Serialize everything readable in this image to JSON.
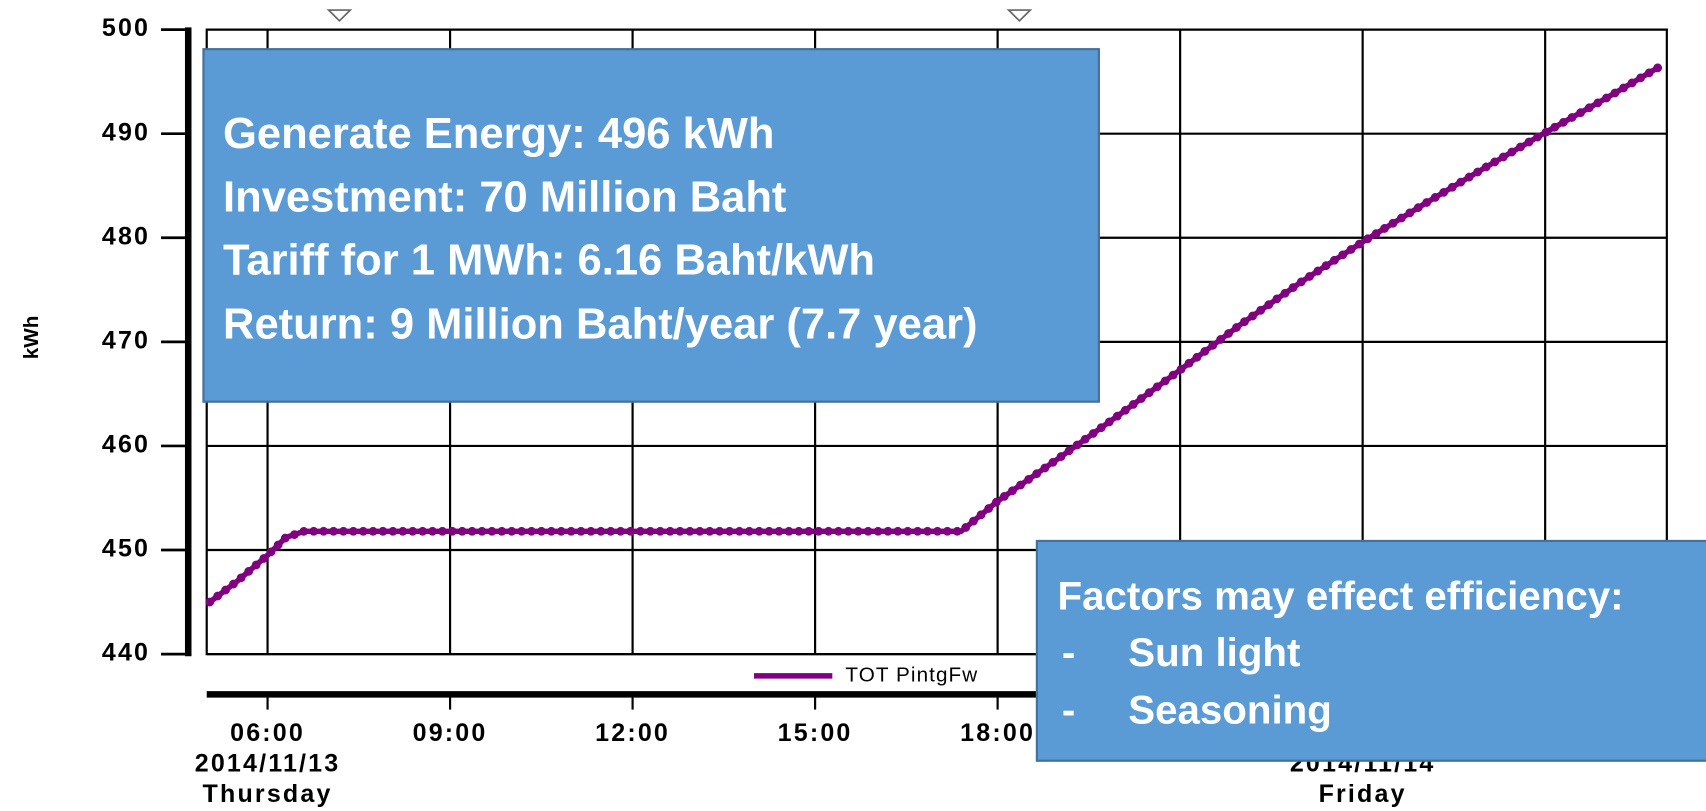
{
  "chart_data": {
    "type": "line",
    "y_axis_label": "kWh",
    "x": [
      5.05,
      5.5,
      6,
      6.3,
      6.6,
      8,
      10,
      12,
      14,
      16,
      17.4,
      18,
      19,
      20,
      21,
      22,
      23,
      24,
      25,
      26,
      27,
      28,
      28.9
    ],
    "series": [
      {
        "name": "TOT PintgFw",
        "color": "#800080",
        "values": [
          445,
          447,
          449.5,
          451.2,
          451.8,
          451.8,
          451.8,
          451.8,
          451.8,
          451.8,
          451.8,
          454.7,
          458.8,
          463,
          467.3,
          471.7,
          475.8,
          479.6,
          483.2,
          486.7,
          490.1,
          493.4,
          496.5
        ]
      }
    ],
    "xlim": [
      5,
      29
    ],
    "xticks": [
      {
        "value": 6,
        "label": "06:00"
      },
      {
        "value": 9,
        "label": "09:00"
      },
      {
        "value": 12,
        "label": "12:00"
      },
      {
        "value": 15,
        "label": "15:00"
      },
      {
        "value": 18,
        "label": "18:00"
      },
      {
        "value": 21,
        "label": null
      },
      {
        "value": 24,
        "label": null
      },
      {
        "value": 27,
        "label": null
      }
    ],
    "x_date_labels": [
      {
        "x": 6,
        "date": "2014/11/13",
        "day": "Thursday"
      },
      {
        "x": 24,
        "date": "2014/11/14",
        "day": "Friday"
      }
    ],
    "ylim": [
      440,
      500
    ],
    "yticks": [
      440,
      450,
      460,
      470,
      480,
      490,
      500
    ],
    "grid": true
  },
  "annotations": {
    "summary": [
      "Generate Energy: 496 kWh",
      "Investment: 70 Million Baht",
      "Tariff for 1 MWh: 6.16 Baht/kWh",
      "Return: 9 Million Baht/year (7.7 year)"
    ],
    "factors_title": "Factors may effect efficiency:",
    "factors": [
      "Sun light",
      "Seasoning"
    ]
  }
}
